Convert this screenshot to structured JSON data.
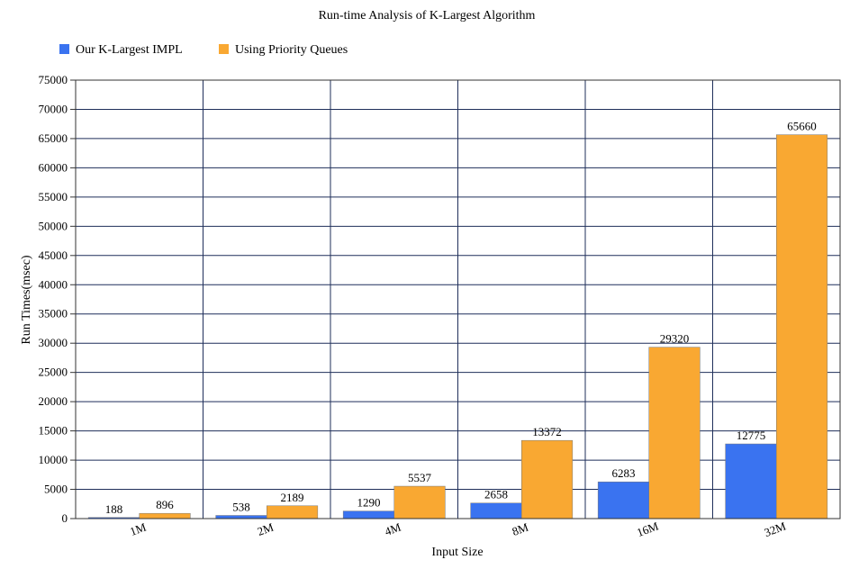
{
  "chart_data": {
    "type": "bar",
    "title": "Run-time Analysis of K-Largest Algorithm",
    "xlabel": "Input Size",
    "ylabel": "Run Times(msec)",
    "categories": [
      "1M",
      "2M",
      "4M",
      "8M",
      "16M",
      "32M"
    ],
    "series": [
      {
        "name": "Our K-Largest IMPL",
        "color": "#3a73f0",
        "values": [
          188,
          538,
          1290,
          2658,
          6283,
          12775
        ]
      },
      {
        "name": "Using Priority Queues",
        "color": "#f9a832",
        "values": [
          896,
          2189,
          5537,
          13372,
          29320,
          65660
        ]
      }
    ],
    "ylim": [
      0,
      75000
    ],
    "yticks": [
      0,
      5000,
      10000,
      15000,
      20000,
      25000,
      30000,
      35000,
      40000,
      45000,
      50000,
      55000,
      60000,
      65000,
      70000,
      75000
    ],
    "grid": true,
    "legend_position": "top-left"
  }
}
